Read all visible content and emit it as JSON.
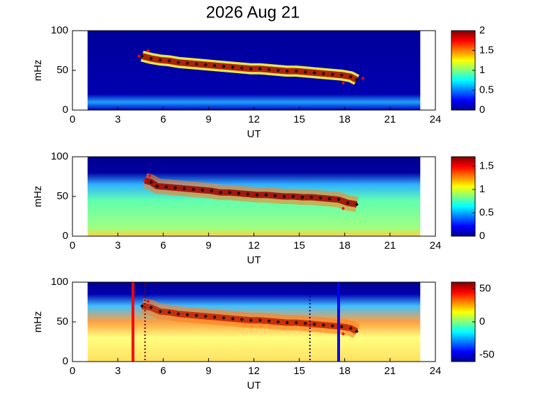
{
  "chart_data": [
    {
      "type": "spectrogram",
      "title": "2026 Aug 21",
      "xlabel": "UT",
      "ylabel": "mHz",
      "xlim": [
        0,
        24
      ],
      "xticks": [
        0,
        3,
        6,
        9,
        12,
        15,
        18,
        21,
        24
      ],
      "ylim": [
        0,
        100
      ],
      "yticks": [
        0,
        50,
        100
      ],
      "coverage": [
        1,
        23
      ],
      "clim": [
        0,
        2
      ],
      "cticks": [
        0,
        0.5,
        1,
        1.5,
        2
      ],
      "series": [
        {
          "color": "#000000",
          "x": [
            4.6,
            5.2,
            5.8,
            6.4,
            7,
            7.6,
            8.2,
            8.8,
            9.4,
            10,
            10.6,
            11.2,
            11.8,
            12.4,
            13,
            13.6,
            14.2,
            14.8,
            15.4,
            16,
            16.6,
            17.2,
            17.8,
            18.4,
            18.8
          ],
          "values": [
            68,
            65,
            63,
            62,
            60,
            59,
            58,
            57,
            56,
            55,
            54,
            53,
            52,
            52,
            51,
            50,
            49,
            49,
            48,
            47,
            46,
            45,
            44,
            42,
            38
          ]
        },
        {
          "color": "#ff0000",
          "x": [
            4.4,
            5.0,
            17.9,
            19.2
          ],
          "values": [
            68,
            75,
            34,
            40
          ]
        }
      ]
    },
    {
      "type": "spectrogram",
      "xlabel": "UT",
      "ylabel": "mHz",
      "xlim": [
        0,
        24
      ],
      "xticks": [
        0,
        3,
        6,
        9,
        12,
        15,
        18,
        21,
        24
      ],
      "ylim": [
        0,
        100
      ],
      "yticks": [
        0,
        50,
        100
      ],
      "coverage": [
        1,
        23
      ],
      "clim": [
        0,
        1.7
      ],
      "cticks": [
        0,
        0.5,
        1,
        1.5
      ],
      "series": [
        {
          "color": "#000000",
          "x": [
            4.8,
            5.2,
            5.6,
            6.2,
            6.8,
            7.4,
            8,
            8.6,
            9.2,
            9.8,
            10.4,
            11,
            11.6,
            12.2,
            12.8,
            13.4,
            14,
            14.6,
            15.2,
            15.8,
            16.4,
            17,
            17.6,
            18.2,
            18.8
          ],
          "values": [
            70,
            68,
            63,
            62,
            61,
            60,
            59,
            58,
            57,
            55,
            55,
            54,
            53,
            52,
            52,
            51,
            50,
            50,
            49,
            49,
            48,
            47,
            46,
            42,
            40
          ]
        },
        {
          "color": "#ff0000",
          "x": [
            4.8,
            5.1,
            17.9
          ],
          "values": [
            70,
            76,
            35
          ]
        }
      ]
    },
    {
      "type": "spectrogram",
      "xlabel": "UT",
      "ylabel": "mHz",
      "xlim": [
        0,
        24
      ],
      "xticks": [
        0,
        3,
        6,
        9,
        12,
        15,
        18,
        21,
        24
      ],
      "ylim": [
        0,
        100
      ],
      "yticks": [
        0,
        50,
        100
      ],
      "coverage": [
        1,
        23
      ],
      "clim": [
        -60,
        60
      ],
      "cticks": [
        -50,
        0,
        50
      ],
      "vlines": [
        {
          "x": 4.0,
          "color": "#ff0000",
          "style": "solid"
        },
        {
          "x": 4.8,
          "color": "#800000",
          "style": "dotted"
        },
        {
          "x": 15.7,
          "color": "#000080",
          "style": "dotted"
        },
        {
          "x": 17.6,
          "color": "#0000ff",
          "style": "solid"
        }
      ],
      "series": [
        {
          "color": "#000000",
          "x": [
            4.6,
            5.2,
            5.8,
            6.4,
            7,
            7.6,
            8.2,
            8.8,
            9.4,
            10,
            10.6,
            11.2,
            11.8,
            12.4,
            13,
            13.6,
            14.2,
            14.8,
            15.4,
            16,
            16.6,
            17.2,
            17.8,
            18.4,
            18.8
          ],
          "values": [
            70,
            68,
            63,
            62,
            60,
            59,
            58,
            57,
            56,
            55,
            54,
            53,
            52,
            52,
            51,
            50,
            49,
            49,
            48,
            47,
            46,
            45,
            44,
            42,
            38
          ]
        },
        {
          "color": "#ff0000",
          "x": [
            5.0,
            17.9
          ],
          "values": [
            76,
            35
          ]
        }
      ]
    }
  ]
}
